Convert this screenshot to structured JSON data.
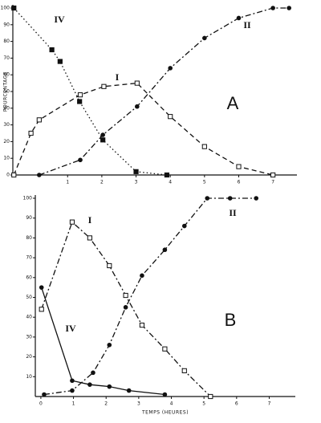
{
  "chart_data": [
    {
      "type": "line",
      "panel": "A",
      "ylabel": "POURCENTAGE",
      "xlim": [
        -0.6,
        7.7
      ],
      "ylim": [
        0,
        100
      ],
      "xticks": [
        1,
        2,
        3,
        4,
        5,
        6,
        7
      ],
      "yticks": [
        0,
        10,
        20,
        30,
        40,
        50,
        60,
        70,
        80,
        90,
        100
      ],
      "series": [
        {
          "name": "IV",
          "color": "#111",
          "dash": "dotted",
          "marker": "square-filled",
          "x": [
            -0.57,
            0.54,
            0.78,
            1.35,
            2.03,
            3.0,
            3.9
          ],
          "values": [
            100,
            75,
            68,
            44,
            21,
            2,
            0
          ]
        },
        {
          "name": "I",
          "color": "#111",
          "dash": "dashed",
          "marker": "square-open",
          "x": [
            -0.57,
            -0.07,
            0.17,
            1.37,
            2.06,
            3.03,
            4.0,
            5.0,
            6.0,
            7.0
          ],
          "values": [
            0,
            25,
            33,
            48,
            53,
            55,
            35,
            17,
            5,
            0
          ]
        },
        {
          "name": "II",
          "color": "#111",
          "dash": "dashdot",
          "marker": "circle-filled",
          "x": [
            0.17,
            1.37,
            2.03,
            3.03,
            4.0,
            5.0,
            6.0,
            7.0,
            7.47
          ],
          "values": [
            0,
            9,
            24,
            41,
            64,
            82,
            94,
            100,
            100
          ]
        }
      ]
    },
    {
      "type": "line",
      "panel": "B",
      "xlabel": "TEMPS (HEURES)",
      "xlim": [
        -0.17,
        7.8
      ],
      "ylim": [
        0,
        100
      ],
      "xticks": [
        0,
        1,
        2,
        3,
        4,
        5,
        6,
        7
      ],
      "yticks": [
        10,
        20,
        30,
        40,
        50,
        60,
        70,
        80,
        90,
        100
      ],
      "series": [
        {
          "name": "I",
          "color": "#111",
          "dash": "dashdot",
          "marker": "square-open",
          "x": [
            0.02,
            0.96,
            1.5,
            2.1,
            2.6,
            3.1,
            3.8,
            4.4,
            5.2
          ],
          "values": [
            44,
            88,
            80,
            66,
            51,
            36,
            24,
            13,
            0
          ]
        },
        {
          "name": "IV",
          "color": "#111",
          "dash": "solid",
          "marker": "circle-filled",
          "x": [
            0.02,
            0.96,
            1.5,
            2.1,
            2.7,
            3.8
          ],
          "values": [
            55,
            8,
            6,
            5,
            3,
            1
          ]
        },
        {
          "name": "II",
          "color": "#111",
          "dash": "dashdot",
          "marker": "circle-filled",
          "x": [
            0.1,
            0.96,
            1.6,
            2.1,
            2.6,
            3.1,
            3.8,
            4.4,
            5.1,
            5.8,
            6.6
          ],
          "values": [
            1,
            3,
            12,
            26,
            45,
            61,
            74,
            86,
            100,
            100,
            100
          ]
        }
      ]
    }
  ]
}
